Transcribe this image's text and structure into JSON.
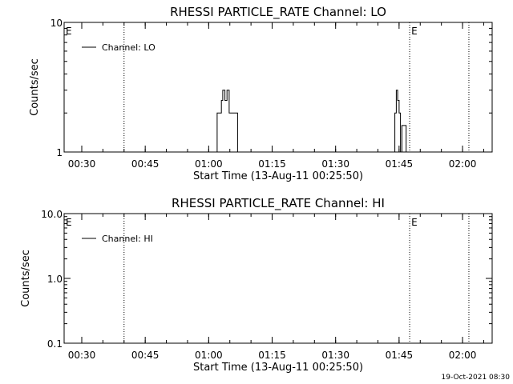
{
  "footer_timestamp": "19-Oct-2021 08:30",
  "chart_data": [
    {
      "type": "line",
      "title": "RHESSI PARTICLE_RATE Channel: LO",
      "xlabel": "Start Time (13-Aug-11 00:25:50)",
      "ylabel": "Counts/sec",
      "yscale": "log",
      "ylim": [
        1,
        10
      ],
      "ytick_labels": [
        "1",
        "10"
      ],
      "xlim": [
        "00:25:50",
        "02:07:00"
      ],
      "xtick_labels": [
        "00:30",
        "00:45",
        "01:00",
        "01:15",
        "01:30",
        "01:45",
        "02:00"
      ],
      "legend": {
        "placement": "top-left",
        "entries": [
          "Channel: LO"
        ]
      },
      "grid": false,
      "event_markers": [
        {
          "time": "00:25:50",
          "label": "E",
          "dotted_line": false
        },
        {
          "time": "00:40:00",
          "label": "",
          "dotted_line": true
        },
        {
          "time": "01:47:30",
          "label": "E",
          "dotted_line": true
        },
        {
          "time": "02:01:30",
          "label": "",
          "dotted_line": true
        }
      ],
      "series": [
        {
          "name": "Channel: LO",
          "x": [
            "01:00:30",
            "01:02:00",
            "01:02:00",
            "01:03:00",
            "01:03:00",
            "01:03:20",
            "01:03:20",
            "01:03:50",
            "01:03:50",
            "01:04:20",
            "01:04:20",
            "01:04:50",
            "01:04:50",
            "01:06:50",
            "01:06:50",
            "01:07:20"
          ],
          "y": [
            1,
            1,
            2,
            2,
            2.5,
            2.5,
            3,
            3,
            2.5,
            2.5,
            3,
            3,
            2,
            2,
            1,
            1
          ],
          "segment": 1
        },
        {
          "name": "Channel: LO",
          "x": [
            "01:43:30",
            "01:44:00",
            "01:44:00",
            "01:44:20",
            "01:44:20",
            "01:44:40",
            "01:44:40",
            "01:45:00",
            "01:45:00",
            "01:45:20",
            "01:45:20",
            "01:45:40",
            "01:45:40",
            "01:46:10",
            "01:46:10",
            "01:46:40",
            "01:46:40",
            "01:47:00"
          ],
          "y": [
            1,
            1,
            2,
            2,
            3,
            3,
            2.5,
            2.5,
            2,
            2,
            1,
            1,
            1.6,
            1.6,
            1.6,
            1.6,
            1,
            1
          ],
          "segment": 2
        }
      ]
    },
    {
      "type": "line",
      "title": "RHESSI PARTICLE_RATE Channel: HI",
      "xlabel": "Start Time (13-Aug-11 00:25:50)",
      "ylabel": "Counts/sec",
      "yscale": "log",
      "ylim": [
        0.1,
        10
      ],
      "ytick_labels": [
        "0.1",
        "1.0",
        "10.0"
      ],
      "xlim": [
        "00:25:50",
        "02:07:00"
      ],
      "xtick_labels": [
        "00:30",
        "00:45",
        "01:00",
        "01:15",
        "01:30",
        "01:45",
        "02:00"
      ],
      "legend": {
        "placement": "top-left",
        "entries": [
          "Channel: HI"
        ]
      },
      "grid": false,
      "event_markers": [
        {
          "time": "00:25:50",
          "label": "E",
          "dotted_line": false
        },
        {
          "time": "00:40:00",
          "label": "",
          "dotted_line": true
        },
        {
          "time": "01:47:30",
          "label": "E",
          "dotted_line": true
        },
        {
          "time": "02:01:30",
          "label": "",
          "dotted_line": true
        }
      ],
      "series": []
    }
  ]
}
